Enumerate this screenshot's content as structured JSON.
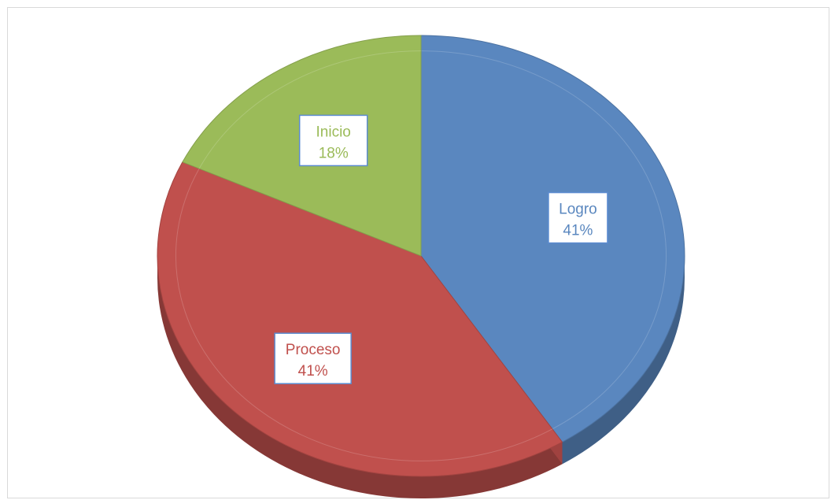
{
  "chart_data": {
    "type": "pie",
    "style": "3d",
    "title": "",
    "slices": [
      {
        "label": "Logro",
        "value": 41,
        "percent_label": "41%",
        "color": "#5a87bf"
      },
      {
        "label": "Proceso",
        "value": 41,
        "percent_label": "41%",
        "color": "#c0504d"
      },
      {
        "label": "Inicio",
        "value": 18,
        "percent_label": "18%",
        "color": "#9bbb59"
      }
    ],
    "legend": "none",
    "data_labels": "category and percentage"
  }
}
